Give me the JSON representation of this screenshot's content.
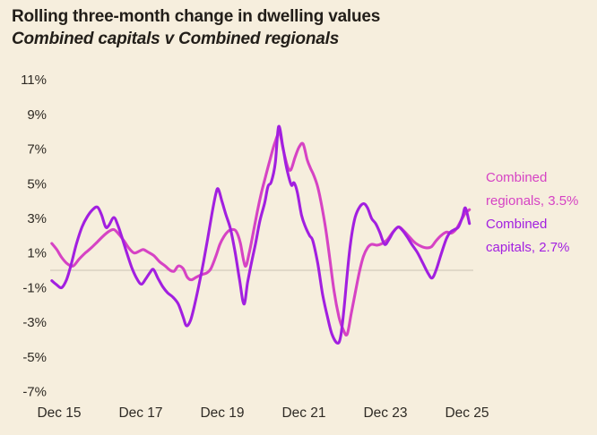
{
  "header": {
    "title": "Rolling three-month change in dwelling values",
    "subtitle": "Combined capitals v Combined regionals"
  },
  "legend": {
    "regionals_label": "Combined regionals, 3.5%",
    "capitals_label": "Combined capitals, 2.7%"
  },
  "colors": {
    "background": "#f6eedd",
    "title_text": "#221e19",
    "axis_text": "#2e2a24",
    "zero_line": "#d8d1c1",
    "capitals": "#a21fe0",
    "regionals": "#d643c4"
  },
  "chart_data": {
    "type": "line",
    "title": "Rolling three-month change in dwelling values",
    "subtitle": "Combined capitals v Combined regionals",
    "unit": "%",
    "grid": "zero-line-only",
    "legend_position": "right",
    "x_axis": {
      "ticks": [
        {
          "t": 2015.96,
          "label": "Dec 15"
        },
        {
          "t": 2017.96,
          "label": "Dec 17"
        },
        {
          "t": 2019.96,
          "label": "Dec 19"
        },
        {
          "t": 2021.96,
          "label": "Dec 21"
        },
        {
          "t": 2023.96,
          "label": "Dec 23"
        },
        {
          "t": 2025.96,
          "label": "Dec 25"
        }
      ]
    },
    "y_axis": {
      "min": -7,
      "max": 11,
      "ticks": [
        {
          "v": 11,
          "label": "11%"
        },
        {
          "v": 9,
          "label": "9%"
        },
        {
          "v": 7,
          "label": "7%"
        },
        {
          "v": 5,
          "label": "5%"
        },
        {
          "v": 3,
          "label": "3%"
        },
        {
          "v": 1,
          "label": "1%"
        },
        {
          "v": -1,
          "label": "-1%"
        },
        {
          "v": -3,
          "label": "-3%"
        },
        {
          "v": -5,
          "label": "-5%"
        },
        {
          "v": -7,
          "label": "-7%"
        }
      ]
    },
    "zero_line": true,
    "series": [
      {
        "name": "Combined regionals",
        "final_value": "3.5%",
        "color_key": "regionals",
        "points": [
          [
            2015.78,
            1.55
          ],
          [
            2015.9,
            1.2
          ],
          [
            2016.02,
            0.75
          ],
          [
            2016.15,
            0.4
          ],
          [
            2016.3,
            0.25
          ],
          [
            2016.45,
            0.65
          ],
          [
            2016.6,
            1.0
          ],
          [
            2016.75,
            1.3
          ],
          [
            2016.9,
            1.65
          ],
          [
            2017.05,
            2.0
          ],
          [
            2017.18,
            2.25
          ],
          [
            2017.3,
            2.35
          ],
          [
            2017.42,
            2.1
          ],
          [
            2017.55,
            1.7
          ],
          [
            2017.68,
            1.25
          ],
          [
            2017.8,
            1.0
          ],
          [
            2017.92,
            1.1
          ],
          [
            2018.02,
            1.2
          ],
          [
            2018.14,
            1.05
          ],
          [
            2018.28,
            0.85
          ],
          [
            2018.42,
            0.5
          ],
          [
            2018.56,
            0.25
          ],
          [
            2018.68,
            0.0
          ],
          [
            2018.78,
            -0.05
          ],
          [
            2018.88,
            0.25
          ],
          [
            2019.0,
            0.1
          ],
          [
            2019.1,
            -0.4
          ],
          [
            2019.2,
            -0.55
          ],
          [
            2019.32,
            -0.4
          ],
          [
            2019.45,
            -0.25
          ],
          [
            2019.58,
            -0.15
          ],
          [
            2019.68,
            0.1
          ],
          [
            2019.8,
            0.8
          ],
          [
            2019.9,
            1.5
          ],
          [
            2020.0,
            1.95
          ],
          [
            2020.1,
            2.25
          ],
          [
            2020.2,
            2.35
          ],
          [
            2020.3,
            2.25
          ],
          [
            2020.4,
            1.6
          ],
          [
            2020.52,
            0.25
          ],
          [
            2020.62,
            1.0
          ],
          [
            2020.72,
            2.2
          ],
          [
            2020.82,
            3.4
          ],
          [
            2020.92,
            4.5
          ],
          [
            2021.02,
            5.4
          ],
          [
            2021.12,
            6.3
          ],
          [
            2021.24,
            7.3
          ],
          [
            2021.36,
            7.9
          ],
          [
            2021.46,
            6.9
          ],
          [
            2021.56,
            6.0
          ],
          [
            2021.64,
            5.8
          ],
          [
            2021.74,
            6.5
          ],
          [
            2021.84,
            7.1
          ],
          [
            2021.94,
            7.3
          ],
          [
            2022.04,
            6.4
          ],
          [
            2022.12,
            5.9
          ],
          [
            2022.2,
            5.5
          ],
          [
            2022.3,
            4.8
          ],
          [
            2022.4,
            3.7
          ],
          [
            2022.5,
            2.3
          ],
          [
            2022.6,
            0.6
          ],
          [
            2022.7,
            -1.2
          ],
          [
            2022.82,
            -2.7
          ],
          [
            2022.92,
            -3.4
          ],
          [
            2023.02,
            -3.7
          ],
          [
            2023.12,
            -2.5
          ],
          [
            2023.22,
            -1.3
          ],
          [
            2023.32,
            -0.1
          ],
          [
            2023.42,
            0.8
          ],
          [
            2023.52,
            1.3
          ],
          [
            2023.62,
            1.5
          ],
          [
            2023.75,
            1.45
          ],
          [
            2023.88,
            1.55
          ],
          [
            2024.0,
            1.75
          ],
          [
            2024.14,
            2.2
          ],
          [
            2024.28,
            2.5
          ],
          [
            2024.4,
            2.3
          ],
          [
            2024.54,
            1.95
          ],
          [
            2024.68,
            1.6
          ],
          [
            2024.82,
            1.4
          ],
          [
            2024.95,
            1.3
          ],
          [
            2025.08,
            1.35
          ],
          [
            2025.2,
            1.7
          ],
          [
            2025.32,
            2.0
          ],
          [
            2025.45,
            2.2
          ],
          [
            2025.58,
            2.15
          ],
          [
            2025.7,
            2.4
          ],
          [
            2025.82,
            2.9
          ],
          [
            2025.92,
            3.3
          ],
          [
            2026.02,
            3.5
          ]
        ]
      },
      {
        "name": "Combined capitals",
        "final_value": "2.7%",
        "color_key": "capitals",
        "points": [
          [
            2015.78,
            -0.6
          ],
          [
            2015.88,
            -0.8
          ],
          [
            2016.02,
            -1.0
          ],
          [
            2016.14,
            -0.55
          ],
          [
            2016.25,
            0.3
          ],
          [
            2016.38,
            1.5
          ],
          [
            2016.52,
            2.5
          ],
          [
            2016.65,
            3.1
          ],
          [
            2016.78,
            3.5
          ],
          [
            2016.9,
            3.65
          ],
          [
            2017.0,
            3.2
          ],
          [
            2017.1,
            2.5
          ],
          [
            2017.18,
            2.6
          ],
          [
            2017.3,
            3.05
          ],
          [
            2017.4,
            2.6
          ],
          [
            2017.5,
            1.9
          ],
          [
            2017.62,
            1.0
          ],
          [
            2017.75,
            0.1
          ],
          [
            2017.88,
            -0.55
          ],
          [
            2017.98,
            -0.8
          ],
          [
            2018.08,
            -0.5
          ],
          [
            2018.18,
            -0.15
          ],
          [
            2018.27,
            0.05
          ],
          [
            2018.38,
            -0.45
          ],
          [
            2018.5,
            -0.95
          ],
          [
            2018.62,
            -1.3
          ],
          [
            2018.75,
            -1.55
          ],
          [
            2018.88,
            -1.95
          ],
          [
            2019.0,
            -2.7
          ],
          [
            2019.08,
            -3.2
          ],
          [
            2019.18,
            -2.9
          ],
          [
            2019.28,
            -2.0
          ],
          [
            2019.4,
            -0.7
          ],
          [
            2019.5,
            0.5
          ],
          [
            2019.6,
            1.8
          ],
          [
            2019.7,
            3.2
          ],
          [
            2019.8,
            4.4
          ],
          [
            2019.86,
            4.7
          ],
          [
            2019.95,
            4.0
          ],
          [
            2020.05,
            3.2
          ],
          [
            2020.16,
            2.4
          ],
          [
            2020.27,
            1.1
          ],
          [
            2020.38,
            -0.5
          ],
          [
            2020.49,
            -1.95
          ],
          [
            2020.58,
            -0.7
          ],
          [
            2020.68,
            0.5
          ],
          [
            2020.78,
            1.6
          ],
          [
            2020.88,
            2.85
          ],
          [
            2021.0,
            3.9
          ],
          [
            2021.08,
            4.85
          ],
          [
            2021.16,
            5.1
          ],
          [
            2021.26,
            6.2
          ],
          [
            2021.34,
            8.3
          ],
          [
            2021.44,
            7.2
          ],
          [
            2021.52,
            6.1
          ],
          [
            2021.6,
            5.3
          ],
          [
            2021.66,
            4.9
          ],
          [
            2021.72,
            5.05
          ],
          [
            2021.8,
            4.5
          ],
          [
            2021.9,
            3.2
          ],
          [
            2022.0,
            2.5
          ],
          [
            2022.1,
            2.0
          ],
          [
            2022.18,
            1.7
          ],
          [
            2022.3,
            0.4
          ],
          [
            2022.42,
            -1.4
          ],
          [
            2022.54,
            -2.7
          ],
          [
            2022.65,
            -3.7
          ],
          [
            2022.78,
            -4.2
          ],
          [
            2022.86,
            -3.85
          ],
          [
            2022.94,
            -2.3
          ],
          [
            2023.02,
            -0.3
          ],
          [
            2023.1,
            1.5
          ],
          [
            2023.2,
            2.9
          ],
          [
            2023.3,
            3.55
          ],
          [
            2023.42,
            3.85
          ],
          [
            2023.52,
            3.6
          ],
          [
            2023.62,
            3.0
          ],
          [
            2023.72,
            2.7
          ],
          [
            2023.82,
            2.2
          ],
          [
            2023.94,
            1.5
          ],
          [
            2024.05,
            1.8
          ],
          [
            2024.15,
            2.2
          ],
          [
            2024.27,
            2.5
          ],
          [
            2024.38,
            2.3
          ],
          [
            2024.5,
            1.9
          ],
          [
            2024.62,
            1.45
          ],
          [
            2024.75,
            1.0
          ],
          [
            2024.88,
            0.4
          ],
          [
            2025.0,
            -0.15
          ],
          [
            2025.1,
            -0.45
          ],
          [
            2025.2,
            0.0
          ],
          [
            2025.32,
            0.9
          ],
          [
            2025.45,
            1.8
          ],
          [
            2025.55,
            2.2
          ],
          [
            2025.65,
            2.35
          ],
          [
            2025.75,
            2.5
          ],
          [
            2025.85,
            3.1
          ],
          [
            2025.92,
            3.6
          ],
          [
            2026.02,
            2.7
          ]
        ]
      }
    ]
  }
}
